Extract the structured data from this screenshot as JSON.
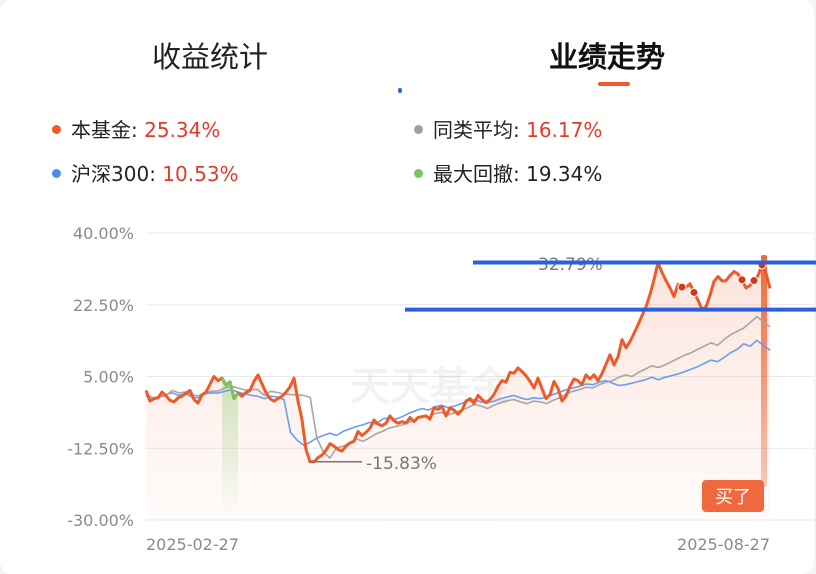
{
  "tabs": [
    {
      "label": "收益统计",
      "active": false
    },
    {
      "label": "业绩走势",
      "active": true
    }
  ],
  "legend": [
    {
      "name": "本基金",
      "value": "25.34%",
      "color": "#ee5a2a"
    },
    {
      "name": "同类平均",
      "value": "16.17%",
      "color": "#9e9e9e"
    },
    {
      "name": "沪深300",
      "value": "10.53%",
      "color": "#4a8cf0"
    },
    {
      "name": "最大回撤",
      "value": "19.34%",
      "color": "#7cc55c"
    }
  ],
  "watermark": "天天基金",
  "buy_label": "买了",
  "chart_data": {
    "type": "line",
    "ylim": [
      -30,
      40
    ],
    "yticks": [
      "40.00%",
      "22.50%",
      "5.00%",
      "-12.50%",
      "-30.00%"
    ],
    "x_labels": [
      "2025-02-27",
      "2025-08-27"
    ],
    "annotations": {
      "max": "32.79%",
      "min": "-15.83%",
      "buy": "买了"
    },
    "highlight_levels": [
      32.8,
      21.3
    ],
    "series": [
      {
        "name": "本基金",
        "color": "#ee5a2a",
        "values": [
          1.6,
          -1.0,
          -0.4,
          -0.2,
          1.2,
          0.3,
          -0.8,
          -1.2,
          -0.2,
          0.2,
          0.9,
          1.6,
          -0.6,
          -1.5,
          0.5,
          1.2,
          3.1,
          5.0,
          4.0,
          4.6,
          2.9,
          3.7,
          -0.4,
          1.0,
          0.2,
          1.1,
          1.6,
          3.8,
          5.4,
          3.2,
          1.0,
          -0.4,
          -1.0,
          -0.4,
          0.2,
          1.2,
          2.5,
          4.6,
          -1.0,
          -5.5,
          -12.8,
          -15.8,
          -15.8,
          -14.8,
          -14.2,
          -13.0,
          -11.4,
          -12.0,
          -12.8,
          -13.2,
          -12.0,
          -11.2,
          -10.8,
          -8.4,
          -9.4,
          -8.6,
          -7.6,
          -5.6,
          -6.6,
          -7.0,
          -6.4,
          -4.6,
          -5.8,
          -6.4,
          -6.0,
          -6.4,
          -5.0,
          -6.0,
          -5.0,
          -4.8,
          -4.6,
          -5.4,
          -2.6,
          -3.0,
          -2.4,
          -4.6,
          -2.6,
          -3.2,
          -4.2,
          -3.2,
          -1.0,
          -0.4,
          -1.6,
          0.4,
          -0.6,
          -1.4,
          -0.6,
          0.6,
          2.6,
          4.0,
          3.6,
          6.0,
          5.8,
          7.1,
          6.2,
          5.2,
          3.8,
          2.2,
          4.6,
          2.0,
          -0.4,
          0.6,
          3.8,
          2.1,
          -1.0,
          0.2,
          2.6,
          4.4,
          4.0,
          3.0,
          5.4,
          4.4,
          5.4,
          4.0,
          5.7,
          8.0,
          10.3,
          7.8,
          9.8,
          14.0,
          12.0,
          13.5,
          15.5,
          17.6,
          19.8,
          22.0,
          25.0,
          28.6,
          32.8,
          30.4,
          28.4,
          26.6,
          24.5,
          27.5,
          26.8,
          26.8,
          27.6,
          25.5,
          23.6,
          21.4,
          22.0,
          24.8,
          28.2,
          29.4,
          28.3,
          28.4,
          29.6,
          30.6,
          30.0,
          28.6,
          26.6,
          27.2,
          28.4,
          29.6,
          32.2,
          30.2,
          26.5
        ]
      },
      {
        "name": "同类平均",
        "color": "#a6a6a6",
        "values": [
          0.6,
          -0.2,
          0.0,
          0.3,
          1.6,
          1.0,
          1.2,
          0.5,
          0.3,
          1.2,
          1.4,
          1.5,
          2.2,
          2.6,
          2.2,
          1.7,
          1.8,
          1.8,
          0.4,
          1.4,
          1.1,
          0.7,
          0.6,
          0.5,
          0.4,
          -0.1,
          -10.0,
          -13.4,
          -14.9,
          -12.4,
          -12.0,
          -11.2,
          -10.2,
          -10.8,
          -10.0,
          -9.0,
          -8.4,
          -7.6,
          -7.2,
          -6.8,
          -6.2,
          -5.6,
          -4.6,
          -5.0,
          -4.0,
          -3.8,
          -4.4,
          -3.8,
          -3.2,
          -2.6,
          -1.8,
          -2.2,
          -2.8,
          -2.0,
          -1.4,
          -0.9,
          -0.6,
          -1.2,
          -1.6,
          -1.0,
          -1.2,
          -1.6,
          -0.8,
          -0.2,
          0.8,
          1.4,
          1.8,
          2.4,
          2.2,
          3.0,
          3.6,
          4.0,
          4.8,
          5.4,
          5.0,
          6.0,
          6.8,
          7.6,
          7.2,
          7.8,
          8.6,
          9.4,
          10.2,
          10.8,
          11.6,
          12.4,
          13.2,
          12.6,
          14.0,
          15.2,
          16.0,
          16.8,
          18.2,
          19.6,
          18.4,
          17.1
        ]
      },
      {
        "name": "沪深300",
        "color": "#6b9df0",
        "values": [
          0.2,
          -0.2,
          0.0,
          0.6,
          1.0,
          0.4,
          0.8,
          0.0,
          -0.2,
          0.8,
          1.0,
          1.0,
          1.4,
          1.8,
          1.2,
          0.8,
          0.4,
          0.2,
          -0.4,
          0.2,
          0.0,
          -0.6,
          -8.6,
          -10.5,
          -11.8,
          -11.0,
          -10.0,
          -9.4,
          -8.8,
          -9.4,
          -8.4,
          -7.8,
          -7.2,
          -6.8,
          -6.2,
          -6.6,
          -5.4,
          -5.0,
          -5.4,
          -4.8,
          -4.0,
          -3.4,
          -2.8,
          -3.2,
          -2.4,
          -2.0,
          -2.6,
          -2.2,
          -1.6,
          -1.0,
          -0.6,
          -1.2,
          -1.4,
          -1.0,
          -0.4,
          0.0,
          0.4,
          -0.2,
          -0.6,
          -0.2,
          -0.4,
          0.0,
          0.6,
          1.2,
          1.8,
          2.2,
          2.6,
          3.2,
          3.0,
          3.6,
          4.0,
          3.4,
          2.8,
          3.0,
          3.4,
          3.8,
          4.2,
          4.8,
          4.2,
          4.8,
          5.2,
          5.6,
          6.2,
          6.8,
          7.4,
          8.2,
          9.0,
          8.6,
          9.6,
          10.8,
          11.6,
          13.0,
          12.4,
          13.8,
          12.6,
          11.4
        ]
      }
    ],
    "drawdown_values": [
      4.6,
      -1.0,
      -5.5,
      -12.8,
      -15.8
    ]
  }
}
